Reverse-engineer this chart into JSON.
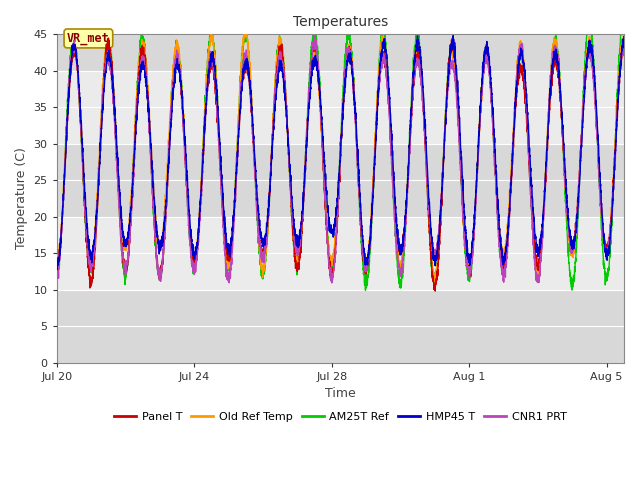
{
  "title": "Temperatures",
  "xlabel": "Time",
  "ylabel": "Temperature (C)",
  "ylim": [
    0,
    45
  ],
  "yticks": [
    0,
    5,
    10,
    15,
    20,
    25,
    30,
    35,
    40,
    45
  ],
  "x_tick_labels": [
    "Jul 20",
    "Jul 24",
    "Jul 28",
    "Aug 1",
    "Aug 5"
  ],
  "x_tick_positions": [
    0,
    4,
    8,
    12,
    16
  ],
  "annotation_text": "VR_met",
  "series_colors": {
    "Panel T": "#cc0000",
    "Old Ref Temp": "#ff9900",
    "AM25T Ref": "#00cc00",
    "HMP45 T": "#0000cc",
    "CNR1 PRT": "#bb44bb"
  },
  "background_color": "#ffffff",
  "plot_bg_color": "#d8d8d8",
  "light_band_color": "#ebebeb",
  "dark_band_color": "#c8c8c8",
  "grid_color": "#ffffff",
  "total_days": 16.5,
  "lw": 1.0,
  "title_fontsize": 10,
  "axis_fontsize": 9,
  "tick_fontsize": 8
}
